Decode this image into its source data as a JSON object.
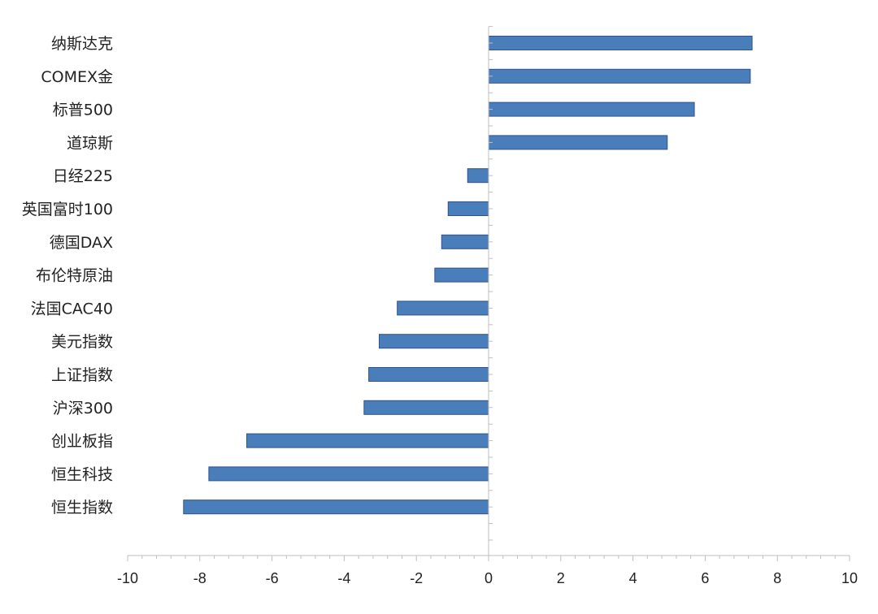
{
  "chart_data": {
    "type": "bar",
    "orientation": "horizontal",
    "title": "",
    "xlabel": "",
    "ylabel": "",
    "xlim": [
      -10,
      10
    ],
    "x_ticks": [
      -10,
      -8,
      -6,
      -4,
      -2,
      0,
      2,
      4,
      6,
      8,
      10
    ],
    "x_tick_labels": [
      "-10",
      "-8",
      "-6",
      "-4",
      "-2",
      "0",
      "2",
      "4",
      "6",
      "8",
      "10"
    ],
    "grid": false,
    "legend": "none",
    "bar_color": "#4a7ebb",
    "bar_border_color": "#2f528f",
    "categories": [
      "纳斯达克",
      "COMEX金",
      "标普500",
      "道琼斯",
      "日经225",
      "英国富时100",
      "德国DAX",
      "布伦特原油",
      "法国CAC40",
      "美元指数",
      "上证指数",
      "沪深300",
      "创业板指",
      "恒生科技",
      "恒生指数"
    ],
    "values": [
      7.3,
      7.25,
      5.7,
      4.95,
      -0.58,
      -1.12,
      -1.3,
      -1.49,
      -2.53,
      -3.03,
      -3.32,
      -3.45,
      -6.7,
      -7.75,
      -8.45
    ]
  }
}
